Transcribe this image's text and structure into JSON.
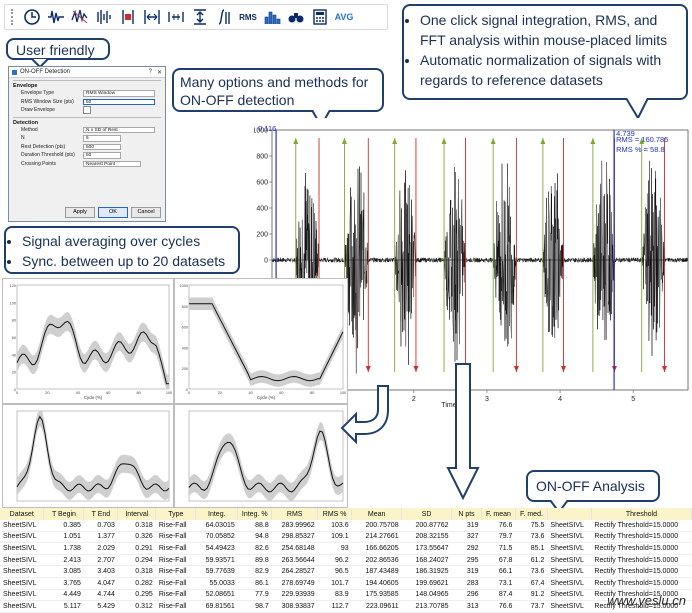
{
  "toolbar": {
    "icons": [
      "clock-icon",
      "signal-icon",
      "wave-compare-icon",
      "bars-icon",
      "marker-red-icon",
      "interval-icon",
      "range-icon",
      "up-down-arrows-icon",
      "integrate-icon",
      "rms-label",
      "histogram-icon",
      "binoculars-icon",
      "calculator-icon",
      "avg-label"
    ],
    "rms_label": "RMS",
    "avg_label": "AVG"
  },
  "callouts": {
    "user_friendly": "User friendly",
    "onoff_detection": "Many options and methods for ON-OFF detection",
    "integration": [
      "One click signal integration, RMS, and FFT analysis within mouse-placed limits",
      "Automatic normalization of signals with regards to reference datasets"
    ],
    "averaging": [
      "Signal averaging over cycles",
      "Sync. between up to 20 datasets"
    ],
    "onoff_analysis": "ON-OFF Analysis"
  },
  "dialog": {
    "title": "ON-OFF Detection",
    "help": "?",
    "close": "✕",
    "envelope_header": "Envelope",
    "envelope_type_label": "Envelope Type",
    "envelope_type_value": "RMS Window",
    "rms_window_label": "RMS Window Size (pts)",
    "rms_window_value": "50",
    "draw_envelope_label": "Draw Envelope",
    "detection_header": "Detection",
    "method_label": "Method",
    "method_value": "N x SD of Rest",
    "n_label": "N",
    "n_value": "5",
    "rest_detection_label": "Rest Detection (pts)",
    "rest_detection_value": "500",
    "duration_threshold_label": "Duration Threshold (pts)",
    "duration_threshold_value": "50",
    "crossing_points_label": "Crossing Points",
    "crossing_points_value": "Nearest Point",
    "apply": "Apply",
    "ok": "OK",
    "cancel": "Cancel"
  },
  "mainplot": {
    "left_cursor": "0.116",
    "right_cursor": "4.739",
    "rms_text": "RMS = 160.785",
    "rms_pct_text": "RMS % = 58.8",
    "y_ticks": [
      "1000",
      "800",
      "600",
      "400",
      "200",
      "0",
      "-200",
      "-400",
      "-600",
      "-800",
      "-1000"
    ],
    "x_ticks": [
      "1",
      "2",
      "3",
      "4",
      "5"
    ],
    "x_label": "Time (s)",
    "colors": {
      "green": "#7fa832",
      "red": "#d42a2a",
      "blue": "#2233cc",
      "signal": "#111111"
    }
  },
  "small_charts": {
    "x_label": "Cycle (%)",
    "x_ticks": [
      "0",
      "20",
      "40",
      "60",
      "80",
      "100"
    ],
    "chart_tl_y": [
      "120",
      "100",
      "80",
      "60",
      "40",
      "20",
      "0"
    ],
    "chart_tr_y": [
      "1000",
      "800",
      "600",
      "400",
      "200",
      "0"
    ]
  },
  "table": {
    "headers": [
      "Dataset",
      "T Begin",
      "T End",
      "Interval",
      "Type",
      "Integ.",
      "Integ. %",
      "RMS",
      "RMS %",
      "Mean",
      "SD",
      "N pts",
      "F. mean",
      "F. med.",
      "",
      "Threshold"
    ],
    "rows": [
      [
        "SheetSIVL",
        "0.385",
        "0.703",
        "0.318",
        "Rise-Fall",
        "64.03015",
        "88.8",
        "283.99962",
        "103.6",
        "200.75708",
        "200.87762",
        "319",
        "76.6",
        "75.5",
        "SheetSIVL",
        "Rectify Threshold=15.0000"
      ],
      [
        "SheetSIVL",
        "1.051",
        "1.377",
        "0.326",
        "Rise-Fall",
        "70.05852",
        "94.8",
        "298.85327",
        "109.1",
        "214.27661",
        "208.32155",
        "327",
        "79.7",
        "73.6",
        "SheetSIVL",
        "Rectify Threshold=15.0000"
      ],
      [
        "SheetSIVL",
        "1.738",
        "2.029",
        "0.291",
        "Rise-Fall",
        "54.49423",
        "82.6",
        "254.68148",
        "93",
        "166.66205",
        "173.55647",
        "292",
        "71.5",
        "85.1",
        "SheetSIVL",
        "Rectify Threshold=15.0000"
      ],
      [
        "SheetSIVL",
        "2.413",
        "2.707",
        "0.294",
        "Rise-Fall",
        "59.93571",
        "89.8",
        "263.56644",
        "96.2",
        "202.86536",
        "168.24027",
        "295",
        "67.8",
        "61.2",
        "SheetSIVL",
        "Rectify Threshold=15.0000"
      ],
      [
        "SheetSIVL",
        "3.085",
        "3.403",
        "0.318",
        "Rise-Fall",
        "59.77639",
        "82.9",
        "264.28527",
        "96.5",
        "187.43489",
        "186.31925",
        "319",
        "66.1",
        "73.6",
        "SheetSIVL",
        "Rectify Threshold=15.0000"
      ],
      [
        "SheetSIVL",
        "3.765",
        "4.047",
        "0.282",
        "Rise-Fall",
        "55.0033",
        "86.1",
        "278.69749",
        "101.7",
        "194.40605",
        "199.69621",
        "283",
        "73.1",
        "67.4",
        "SheetSIVL",
        "Rectify Threshold=15.0000"
      ],
      [
        "SheetSIVL",
        "4.449",
        "4.744",
        "0.295",
        "Rise-Fall",
        "52.08651",
        "77.9",
        "229.93939",
        "83.9",
        "175.93585",
        "148.04965",
        "296",
        "87.4",
        "91.2",
        "SheetSIVL",
        "Rectify Threshold=15.0000"
      ],
      [
        "SheetSIVL",
        "5.117",
        "5.429",
        "0.312",
        "Rise-Fall",
        "69.81561",
        "98.7",
        "308.93837",
        "112.7",
        "223.09611",
        "213.70785",
        "313",
        "76.6",
        "73.7",
        "SheetSIVL",
        "Rectify Threshold=15.0000"
      ]
    ]
  },
  "watermark": "www.yeslu.cn"
}
